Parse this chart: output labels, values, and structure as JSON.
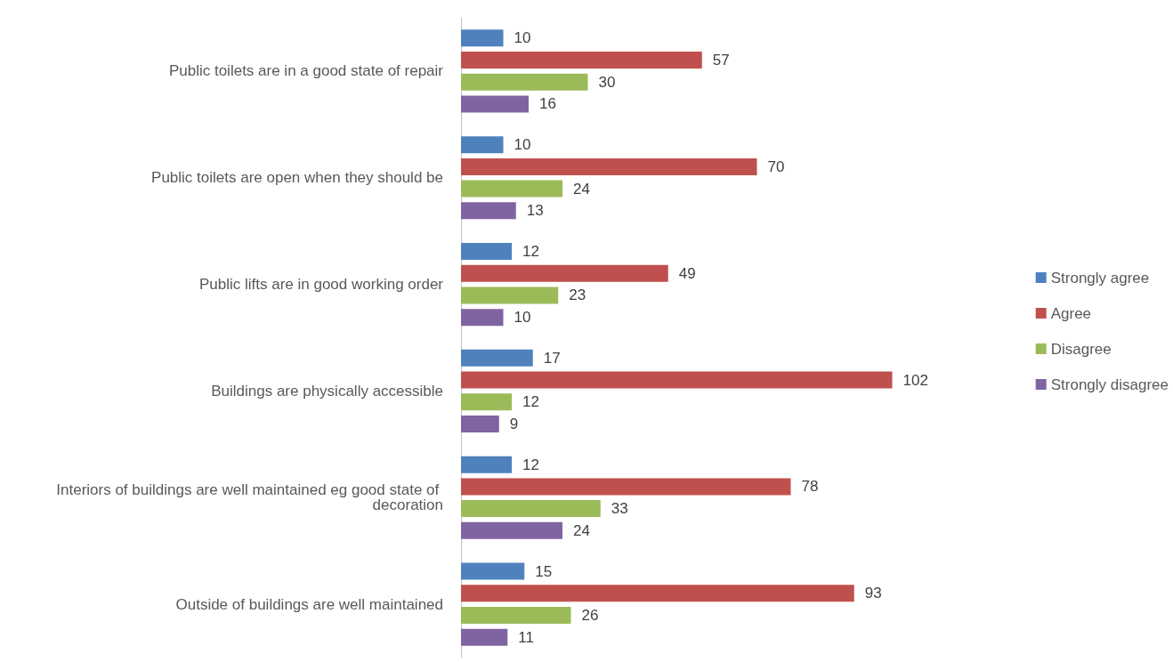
{
  "chart_data": {
    "type": "bar",
    "orientation": "horizontal",
    "data_labels": true,
    "legend": "right",
    "tick_labels": "y",
    "categories": [
      "Public toilets are in a good state of repair",
      "Public toilets are open when they should be",
      "Public lifts are in good working order",
      "Buildings are physically accessible",
      "Interiors of buildings are well maintained eg good state of decoration",
      "Outside of buildings are well maintained"
    ],
    "series": [
      {
        "name": "Strongly agree",
        "color": "#4f81bd",
        "values": [
          10,
          10,
          12,
          17,
          12,
          15
        ]
      },
      {
        "name": "Agree",
        "color": "#c0504d",
        "values": [
          57,
          70,
          49,
          102,
          78,
          93
        ]
      },
      {
        "name": "Disagree",
        "color": "#9bbb59",
        "values": [
          30,
          24,
          23,
          12,
          33,
          26
        ]
      },
      {
        "name": "Strongly disagree",
        "color": "#8064a2",
        "values": [
          16,
          13,
          10,
          9,
          24,
          11
        ]
      }
    ]
  }
}
